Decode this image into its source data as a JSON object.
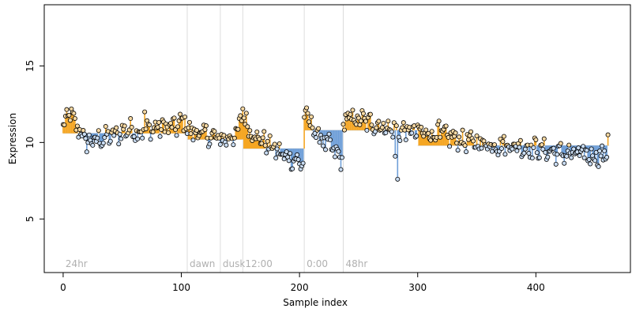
{
  "chart_data": {
    "type": "scatter",
    "title": "",
    "xlabel": "Sample index",
    "ylabel": "Expression",
    "xlim": [
      -16,
      480
    ],
    "ylim": [
      1.5,
      19.0
    ],
    "xticks": [
      0,
      100,
      200,
      300,
      400
    ],
    "yticks": [
      5,
      10,
      15
    ],
    "phase_markers": [
      {
        "x": 0,
        "label": "24hr"
      },
      {
        "x": 105,
        "label": "dawn"
      },
      {
        "x": 133,
        "label": "dusk"
      },
      {
        "x": 152,
        "label": "12:00"
      },
      {
        "x": 204,
        "label": "0:00"
      },
      {
        "x": 237,
        "label": "48hr"
      }
    ],
    "baseline": {
      "segments": [
        {
          "x0": 0,
          "x1": 105,
          "y": 10.6
        },
        {
          "x0": 105,
          "x1": 152,
          "y": 10.2
        },
        {
          "x0": 152,
          "x1": 204,
          "y": 9.6
        },
        {
          "x0": 204,
          "x1": 237,
          "y": 10.8
        },
        {
          "x0": 237,
          "x1": 300,
          "y": 10.8
        },
        {
          "x0": 300,
          "x1": 462,
          "y": 9.8
        }
      ]
    },
    "segment_colors": {
      "above": "#f5a623",
      "below": "#6f9fd8",
      "point_fill_above": "#f7d9a3",
      "point_fill_below": "#c9dcf2"
    },
    "series": [
      {
        "anchors": [
          [
            0,
            11.0
          ],
          [
            3,
            11.5
          ],
          [
            6,
            12.0
          ],
          [
            9,
            11.3
          ],
          [
            12,
            11.0
          ],
          [
            16,
            10.5
          ],
          [
            20,
            10.0
          ],
          [
            26,
            10.1
          ],
          [
            35,
            10.3
          ],
          [
            45,
            10.5
          ],
          [
            55,
            10.9
          ],
          [
            65,
            10.7
          ],
          [
            75,
            10.9
          ],
          [
            85,
            11.0
          ],
          [
            95,
            11.0
          ],
          [
            104,
            11.5
          ],
          [
            105,
            10.8
          ],
          [
            115,
            10.6
          ],
          [
            125,
            10.4
          ],
          [
            133,
            10.2
          ],
          [
            140,
            10.3
          ],
          [
            148,
            10.6
          ],
          [
            151,
            11.8
          ],
          [
            152,
            12.0
          ],
          [
            156,
            11.0
          ],
          [
            165,
            10.3
          ],
          [
            175,
            9.8
          ],
          [
            185,
            9.2
          ],
          [
            195,
            8.9
          ],
          [
            203,
            8.6
          ],
          [
            204,
            11.3
          ],
          [
            206,
            11.8
          ],
          [
            212,
            10.8
          ],
          [
            222,
            10.0
          ],
          [
            232,
            9.2
          ],
          [
            236,
            8.8
          ],
          [
            237,
            11.0
          ],
          [
            240,
            11.6
          ],
          [
            250,
            11.5
          ],
          [
            265,
            11.2
          ],
          [
            280,
            10.8
          ],
          [
            295,
            10.7
          ],
          [
            310,
            10.6
          ],
          [
            325,
            10.4
          ],
          [
            340,
            10.1
          ],
          [
            360,
            9.9
          ],
          [
            380,
            9.8
          ],
          [
            400,
            9.6
          ],
          [
            420,
            9.3
          ],
          [
            440,
            9.2
          ],
          [
            458,
            9.1
          ],
          [
            461,
            9.7
          ]
        ],
        "outliers": [
          [
            69,
            12.0
          ],
          [
            152,
            12.2
          ],
          [
            205,
            12.1
          ],
          [
            283,
            7.6
          ],
          [
            281,
            9.1
          ],
          [
            318,
            11.4
          ],
          [
            461,
            10.5
          ]
        ]
      }
    ]
  }
}
